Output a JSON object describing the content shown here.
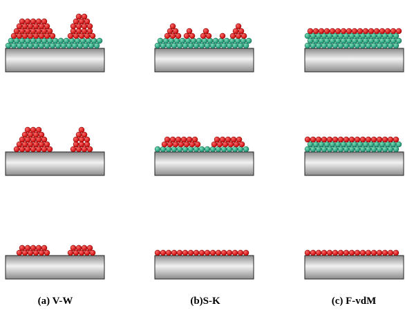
{
  "labels": [
    "(a) V-W",
    "(b)S-K",
    "(c) F-vdM"
  ]
}
